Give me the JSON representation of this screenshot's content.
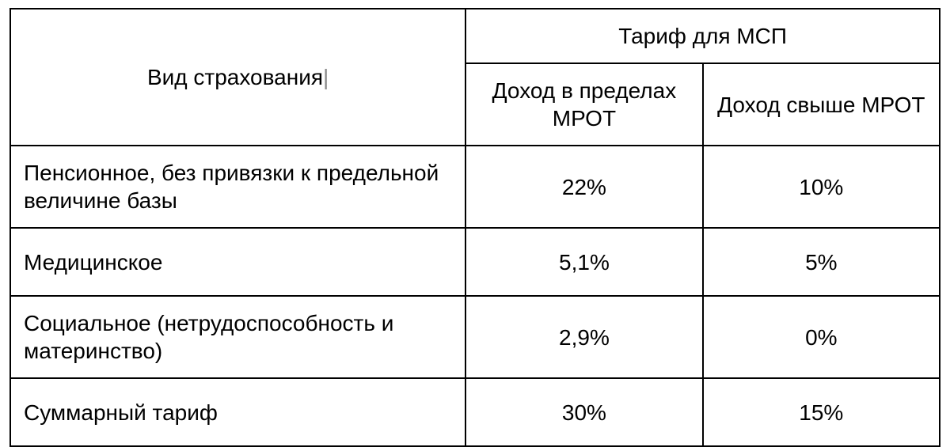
{
  "table": {
    "type": "table",
    "border_color": "#000000",
    "background_color": "#ffffff",
    "text_color": "#000000",
    "font_family": "Arial",
    "font_size_pt": 21,
    "columns": {
      "type_label": "Вид страхования",
      "group_label": "Тариф для МСП",
      "sub_a": "Доход в пределах МРОТ",
      "sub_b": "Доход свыше МРОТ",
      "widths_pct": [
        49,
        25.5,
        25.5
      ],
      "alignments": [
        "left",
        "center",
        "center"
      ]
    },
    "rows": [
      {
        "label": "Пенсионное, без привязки к предельной величине базы",
        "a": "22%",
        "b": "10%"
      },
      {
        "label": "Медицинское",
        "a": "5,1%",
        "b": "5%"
      },
      {
        "label": "Социальное (нетрудоспособность и материнство)",
        "a": "2,9%",
        "b": "0%"
      },
      {
        "label": "Суммарный тариф",
        "a": "30%",
        "b": "15%"
      }
    ]
  }
}
